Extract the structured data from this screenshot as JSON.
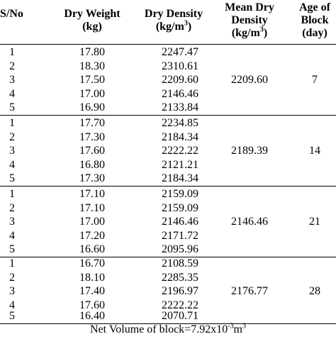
{
  "headers": {
    "sno": "S/No",
    "weight_line1": "Dry Weight",
    "weight_line2": "(kg)",
    "density_line1": "Dry Density",
    "density_line2": "(kg/m",
    "density_sup": "3",
    "density_close": ")",
    "mean_line1": "Mean Dry",
    "mean_line2": "Density",
    "mean_line3": "(kg/m",
    "mean_sup": "3",
    "mean_close": ")",
    "age_line1": "Age of",
    "age_line2": "Block",
    "age_line3": "(day)"
  },
  "groups": [
    {
      "mean": "2209.60",
      "age": "7",
      "rows": [
        {
          "sno": "1",
          "weight": "17.80",
          "density": "2247.47"
        },
        {
          "sno": "2",
          "weight": "18.30",
          "density": "2310.61"
        },
        {
          "sno": "3",
          "weight": "17.50",
          "density": "2209.60"
        },
        {
          "sno": "4",
          "weight": "17.00",
          "density": "2146.46"
        },
        {
          "sno": "5",
          "weight": "16.90",
          "density": "2133.84"
        }
      ]
    },
    {
      "mean": "2189.39",
      "age": "14",
      "rows": [
        {
          "sno": "1",
          "weight": "17.70",
          "density": "2234.85"
        },
        {
          "sno": "2",
          "weight": "17.30",
          "density": "2184.34"
        },
        {
          "sno": "3",
          "weight": "17.60",
          "density": "2222.22"
        },
        {
          "sno": "4",
          "weight": "16.80",
          "density": "2121.21"
        },
        {
          "sno": "5",
          "weight": "17.30",
          "density": "2184.34"
        }
      ]
    },
    {
      "mean": "2146.46",
      "age": "21",
      "rows": [
        {
          "sno": "1",
          "weight": "17.10",
          "density": "2159.09"
        },
        {
          "sno": "2",
          "weight": "17.10",
          "density": "2159.09"
        },
        {
          "sno": "3",
          "weight": "17.00",
          "density": "2146.46"
        },
        {
          "sno": "4",
          "weight": "17.20",
          "density": "2171.72"
        },
        {
          "sno": "5",
          "weight": "16.60",
          "density": "2095.96"
        }
      ]
    },
    {
      "mean": "2176.77",
      "age": "28",
      "rows": [
        {
          "sno": "1",
          "weight": "16.70",
          "density": "2108.59"
        },
        {
          "sno": "2",
          "weight": "18.10",
          "density": "2285.35"
        },
        {
          "sno": "3",
          "weight": "17.40",
          "density": "2196.97"
        },
        {
          "sno": "4",
          "weight": "17.60",
          "density": "2222.22"
        },
        {
          "sno": "5",
          "weight": "16.40",
          "density": "2070.71"
        }
      ]
    }
  ],
  "footer": {
    "prefix": "Net Volume of block=7.92x10",
    "exp": "-3",
    "unit": "m",
    "unit_sup": "3"
  }
}
